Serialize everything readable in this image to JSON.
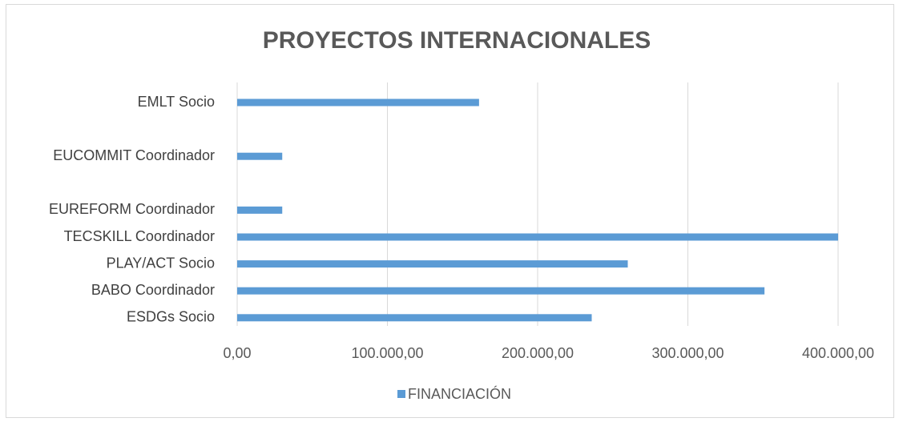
{
  "chart_data": {
    "type": "bar",
    "orientation": "horizontal",
    "title": "PROYECTOS INTERNACIONALES",
    "categories": [
      "EMLT Socio",
      null,
      "EUCOMMIT Coordinador",
      null,
      "EUREFORM Coordinador",
      "TECSKILL Coordinador",
      "PLAY/ACT Socio",
      "BABO Coordinador",
      "ESDGs Socio"
    ],
    "series": [
      {
        "name": "FINANCIACIÓN",
        "color": "#5b9bd5",
        "values": [
          161000,
          null,
          30000,
          null,
          30000,
          400000,
          260000,
          351000,
          236000
        ]
      }
    ],
    "xlim": [
      0,
      400000
    ],
    "xticks": [
      {
        "value": 0,
        "label": "0,00"
      },
      {
        "value": 100000,
        "label": "100.000,00"
      },
      {
        "value": 200000,
        "label": "200.000,00"
      },
      {
        "value": 300000,
        "label": "300.000,00"
      },
      {
        "value": 400000,
        "label": "400.000,00"
      }
    ],
    "grid": true,
    "legend": "bottom"
  }
}
